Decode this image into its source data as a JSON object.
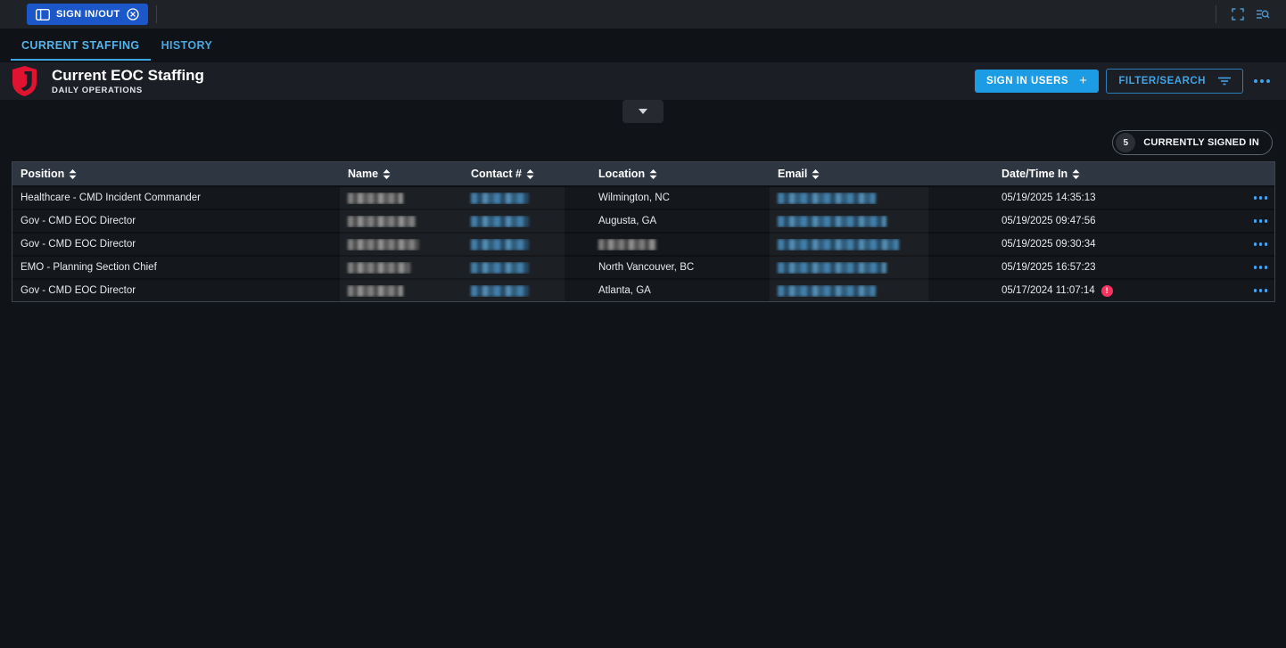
{
  "topbar": {
    "sign_in_out_label": "SIGN IN/OUT",
    "icons": {
      "button_left": "panel-layout-icon",
      "button_right": "circle-x-icon",
      "right_1": "fullscreen-icon",
      "right_2": "search-list-icon"
    }
  },
  "tabs": [
    {
      "label": "CURRENT STAFFING",
      "active": true
    },
    {
      "label": "HISTORY",
      "active": false
    }
  ],
  "header": {
    "title": "Current EOC Staffing",
    "subtitle": "DAILY OPERATIONS",
    "sign_in_users_label": "SIGN IN USERS",
    "filter_search_label": "FILTER/SEARCH",
    "logo": "red-shield-logo"
  },
  "status_badge": {
    "count": "5",
    "label": "CURRENTLY SIGNED IN"
  },
  "colors": {
    "accent_blue": "#42a5f5",
    "primary_button_blue": "#1b57c9",
    "cyan_button": "#1b9ce4",
    "alert_red": "#f4335f",
    "table_header_bg": "#2e3642",
    "logo_red": "#e01330"
  },
  "table": {
    "columns": [
      "Position",
      "Name",
      "Contact #",
      "Location",
      "Email",
      "Date/Time In"
    ],
    "rows": [
      {
        "position": "Healthcare - CMD Incident Commander",
        "name_redacted": true,
        "contact_redacted": true,
        "location": "Wilmington, NC",
        "location_redacted": false,
        "email_redacted": true,
        "datetime": "05/19/2025 14:35:13",
        "alert": false,
        "name_w": 62,
        "contact_w": 65,
        "email_w": 110
      },
      {
        "position": "Gov - CMD EOC Director",
        "name_redacted": true,
        "contact_redacted": true,
        "location": "Augusta, GA",
        "location_redacted": false,
        "email_redacted": true,
        "datetime": "05/19/2025 09:47:56",
        "alert": false,
        "name_w": 76,
        "contact_w": 65,
        "email_w": 122
      },
      {
        "position": "Gov - CMD EOC Director",
        "name_redacted": true,
        "contact_redacted": true,
        "location": "",
        "location_redacted": true,
        "location_w": 65,
        "email_redacted": true,
        "datetime": "05/19/2025 09:30:34",
        "alert": false,
        "name_w": 80,
        "contact_w": 65,
        "email_w": 136
      },
      {
        "position": "EMO - Planning Section Chief",
        "name_redacted": true,
        "contact_redacted": true,
        "location": "North Vancouver, BC",
        "location_redacted": false,
        "email_redacted": true,
        "datetime": "05/19/2025 16:57:23",
        "alert": false,
        "name_w": 70,
        "contact_w": 65,
        "email_w": 122
      },
      {
        "position": "Gov - CMD EOC Director",
        "name_redacted": true,
        "contact_redacted": true,
        "location": "Atlanta, GA",
        "location_redacted": false,
        "email_redacted": true,
        "datetime": "05/17/2024 11:07:14",
        "alert": true,
        "name_w": 62,
        "contact_w": 65,
        "email_w": 110
      }
    ]
  }
}
